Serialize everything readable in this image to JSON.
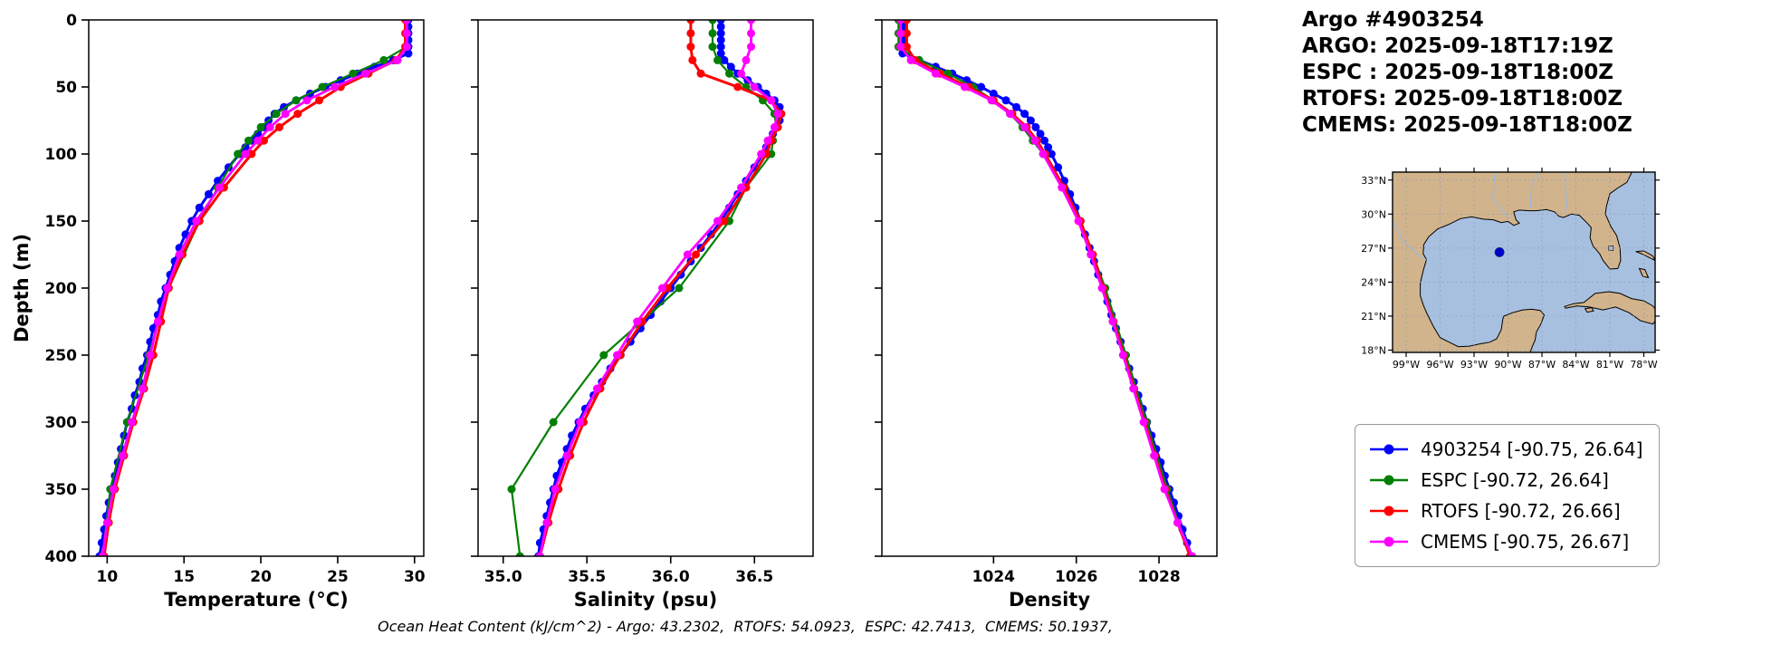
{
  "title_block": {
    "lines": [
      "Argo #4903254",
      "ARGO: 2025-09-18T17:19Z",
      "ESPC : 2025-09-18T18:00Z",
      "RTOFS: 2025-09-18T18:00Z",
      "CMEMS: 2025-09-18T18:00Z"
    ]
  },
  "footer": {
    "text": "Ocean Heat Content (kJ/cm^2) - Argo: 43.2302,  RTOFS: 54.0923,  ESPC: 42.7413,  CMEMS: 50.1937,"
  },
  "legend": {
    "items": [
      {
        "label": "4903254 [-90.75, 26.64]",
        "color": "#0000ff"
      },
      {
        "label": "ESPC [-90.72, 26.64]",
        "color": "#008000"
      },
      {
        "label": "RTOFS [-90.72, 26.66]",
        "color": "#ff0000"
      },
      {
        "label": "CMEMS [-90.75, 26.67]",
        "color": "#ff00ff"
      }
    ]
  },
  "map": {
    "lon_range": [
      -100.2,
      -77.0
    ],
    "lat_range": [
      17.8,
      33.7
    ],
    "lat_ticks": [
      {
        "value": 33,
        "label": "33°N"
      },
      {
        "value": 30,
        "label": "30°N"
      },
      {
        "value": 27,
        "label": "27°N"
      },
      {
        "value": 24,
        "label": "24°N"
      },
      {
        "value": 21,
        "label": "21°N"
      },
      {
        "value": 18,
        "label": "18°N"
      }
    ],
    "lon_ticks": [
      {
        "value": -99,
        "label": "99°W"
      },
      {
        "value": -96,
        "label": "96°W"
      },
      {
        "value": -93,
        "label": "93°W"
      },
      {
        "value": -90,
        "label": "90°W"
      },
      {
        "value": -87,
        "label": "87°W"
      },
      {
        "value": -84,
        "label": "84°W"
      },
      {
        "value": -81,
        "label": "81°W"
      },
      {
        "value": -78,
        "label": "78°W"
      }
    ],
    "marker": {
      "lon": -90.75,
      "lat": 26.64
    },
    "colors": {
      "water": "#a8c0e0",
      "land": "#d2b48c",
      "marker": "#0000cd",
      "river": "#9ab8dd",
      "grid": "#8f9db0"
    },
    "land": [
      [
        [
          -100.5,
          33.8
        ],
        [
          -79.0,
          33.8
        ],
        [
          -79.5,
          32.8
        ],
        [
          -80.3,
          32.3
        ],
        [
          -81.0,
          31.8
        ],
        [
          -81.3,
          30.7
        ],
        [
          -81.4,
          30.0
        ],
        [
          -80.9,
          28.9
        ],
        [
          -80.4,
          28.1
        ],
        [
          -80.1,
          27.0
        ],
        [
          -80.05,
          25.9
        ],
        [
          -80.3,
          25.2
        ],
        [
          -81.0,
          25.15
        ],
        [
          -81.6,
          25.9
        ],
        [
          -81.9,
          26.5
        ],
        [
          -82.5,
          27.2
        ],
        [
          -82.75,
          27.9
        ],
        [
          -82.65,
          28.8
        ],
        [
          -83.0,
          29.2
        ],
        [
          -83.7,
          29.9
        ],
        [
          -84.4,
          30.0
        ],
        [
          -85.1,
          29.7
        ],
        [
          -85.5,
          29.8
        ],
        [
          -85.9,
          30.2
        ],
        [
          -86.6,
          30.4
        ],
        [
          -87.5,
          30.3
        ],
        [
          -88.2,
          30.3
        ],
        [
          -89.0,
          30.35
        ],
        [
          -89.5,
          30.2
        ],
        [
          -89.3,
          29.5
        ],
        [
          -89.0,
          29.2
        ],
        [
          -89.5,
          29.0
        ],
        [
          -90.0,
          29.35
        ],
        [
          -90.6,
          29.25
        ],
        [
          -91.3,
          29.5
        ],
        [
          -92.2,
          29.55
        ],
        [
          -93.2,
          29.75
        ],
        [
          -94.2,
          29.6
        ],
        [
          -95.2,
          29.1
        ],
        [
          -96.2,
          28.7
        ],
        [
          -97.0,
          28.0
        ],
        [
          -97.45,
          27.3
        ],
        [
          -97.5,
          26.5
        ],
        [
          -97.2,
          26.0
        ],
        [
          -97.5,
          25.0
        ],
        [
          -97.75,
          23.9
        ],
        [
          -97.75,
          22.8
        ],
        [
          -97.5,
          22.0
        ],
        [
          -97.15,
          21.2
        ],
        [
          -96.6,
          20.1
        ],
        [
          -96.0,
          19.1
        ],
        [
          -95.2,
          18.7
        ],
        [
          -94.4,
          18.3
        ],
        [
          -93.4,
          18.35
        ],
        [
          -92.5,
          18.55
        ],
        [
          -91.6,
          18.7
        ],
        [
          -91.0,
          19.0
        ],
        [
          -90.6,
          19.8
        ],
        [
          -90.45,
          20.8
        ],
        [
          -90.35,
          21.0
        ],
        [
          -89.6,
          21.3
        ],
        [
          -88.7,
          21.55
        ],
        [
          -87.9,
          21.6
        ],
        [
          -87.15,
          21.5
        ],
        [
          -86.8,
          21.1
        ],
        [
          -87.1,
          20.3
        ],
        [
          -87.5,
          19.6
        ],
        [
          -87.6,
          18.9
        ],
        [
          -87.9,
          18.2
        ],
        [
          -88.1,
          17.6
        ],
        [
          -100.5,
          17.6
        ]
      ],
      [
        [
          -85.0,
          21.85
        ],
        [
          -84.2,
          22.1
        ],
        [
          -83.3,
          22.2
        ],
        [
          -82.3,
          23.0
        ],
        [
          -81.1,
          23.15
        ],
        [
          -80.1,
          23.0
        ],
        [
          -79.1,
          22.55
        ],
        [
          -78.0,
          22.35
        ],
        [
          -77.2,
          21.9
        ],
        [
          -76.6,
          21.1
        ],
        [
          -77.2,
          20.3
        ],
        [
          -78.3,
          20.6
        ],
        [
          -79.3,
          21.3
        ],
        [
          -80.5,
          21.8
        ],
        [
          -81.6,
          21.55
        ],
        [
          -82.8,
          21.8
        ],
        [
          -83.9,
          21.9
        ],
        [
          -84.9,
          21.7
        ]
      ],
      [
        [
          -83.2,
          21.65
        ],
        [
          -82.6,
          21.75
        ],
        [
          -82.45,
          21.45
        ],
        [
          -83.0,
          21.35
        ]
      ],
      [
        [
          -78.7,
          26.7
        ],
        [
          -78.0,
          26.75
        ],
        [
          -77.2,
          26.3
        ],
        [
          -77.0,
          25.9
        ],
        [
          -77.4,
          26.1
        ],
        [
          -78.2,
          26.5
        ]
      ],
      [
        [
          -78.4,
          25.2
        ],
        [
          -77.9,
          25.1
        ],
        [
          -77.6,
          24.4
        ],
        [
          -78.1,
          24.5
        ]
      ]
    ],
    "lakes": [
      [
        [
          -81.1,
          27.2
        ],
        [
          -80.7,
          27.2
        ],
        [
          -80.7,
          26.8
        ],
        [
          -81.1,
          26.8
        ]
      ]
    ],
    "rivers": [
      [
        [
          -91.3,
          33.8
        ],
        [
          -91.1,
          32.5
        ],
        [
          -91.5,
          31.5
        ],
        [
          -90.9,
          30.8
        ],
        [
          -89.9,
          29.6
        ]
      ],
      [
        [
          -87.3,
          33.8
        ],
        [
          -87.9,
          32.5
        ],
        [
          -88.0,
          31.2
        ],
        [
          -88.0,
          30.6
        ]
      ],
      [
        [
          -85.0,
          33.8
        ],
        [
          -84.9,
          32.2
        ],
        [
          -84.8,
          30.8
        ],
        [
          -85.0,
          30.0
        ]
      ],
      [
        [
          -100.1,
          29.3
        ],
        [
          -99.3,
          27.6
        ],
        [
          -97.8,
          26.3
        ],
        [
          -97.2,
          25.95
        ]
      ]
    ]
  },
  "chart_data": {
    "type": "line",
    "orientation": "vertical-profile",
    "ylabel": "Depth (m)",
    "ylim": [
      0,
      400
    ],
    "yticks": [
      0,
      50,
      100,
      150,
      200,
      250,
      300,
      350,
      400
    ],
    "panels": [
      {
        "key": "temperature",
        "xlabel": "Temperature (°C)",
        "xlim": [
          8.8,
          30.6
        ],
        "xticks": [
          10,
          15,
          20,
          25,
          30
        ],
        "xtick_labels": [
          "10",
          "15",
          "20",
          "25",
          "30"
        ]
      },
      {
        "key": "salinity",
        "xlabel": "Salinity (psu)",
        "xlim": [
          34.85,
          36.85
        ],
        "xticks": [
          35.0,
          35.5,
          36.0,
          36.5
        ],
        "xtick_labels": [
          "35.0",
          "35.5",
          "36.0",
          "36.5"
        ]
      },
      {
        "key": "density",
        "xlabel": "Density",
        "xlim": [
          1021.3,
          1029.4
        ],
        "xticks": [
          1024,
          1026,
          1028
        ],
        "xtick_labels": [
          "1024",
          "1026",
          "1028"
        ]
      }
    ],
    "series": [
      {
        "name": "4903254",
        "color": "#0000ff",
        "line_width": 3,
        "marker_size": 4.5,
        "depths": [
          0,
          5,
          10,
          15,
          20,
          25,
          30,
          35,
          40,
          45,
          50,
          55,
          60,
          65,
          70,
          75,
          80,
          85,
          90,
          95,
          100,
          110,
          120,
          130,
          140,
          150,
          160,
          170,
          180,
          190,
          200,
          210,
          220,
          230,
          240,
          250,
          260,
          270,
          280,
          290,
          300,
          310,
          320,
          330,
          340,
          350,
          360,
          370,
          380,
          390,
          400
        ],
        "temperature": [
          29.6,
          29.6,
          29.6,
          29.6,
          29.6,
          29.6,
          28.6,
          27.4,
          26.3,
          25.2,
          24.2,
          23.2,
          22.3,
          21.5,
          20.9,
          20.5,
          20.2,
          19.8,
          19.4,
          19.0,
          18.6,
          17.9,
          17.2,
          16.6,
          16.0,
          15.5,
          15.1,
          14.7,
          14.4,
          14.1,
          13.8,
          13.5,
          13.3,
          13.0,
          12.8,
          12.6,
          12.3,
          12.1,
          11.8,
          11.6,
          11.3,
          11.1,
          10.9,
          10.7,
          10.5,
          10.3,
          10.1,
          9.95,
          9.8,
          9.65,
          9.5
        ],
        "salinity": [
          36.3,
          36.3,
          36.3,
          36.3,
          36.3,
          36.3,
          36.32,
          36.36,
          36.4,
          36.46,
          36.52,
          36.57,
          36.62,
          36.65,
          36.66,
          36.65,
          36.63,
          36.61,
          36.59,
          36.57,
          36.55,
          36.5,
          36.45,
          36.4,
          36.35,
          36.3,
          36.24,
          36.18,
          36.12,
          36.06,
          36.0,
          35.94,
          35.88,
          35.82,
          35.76,
          35.7,
          35.64,
          35.59,
          35.54,
          35.49,
          35.45,
          35.41,
          35.38,
          35.35,
          35.32,
          35.3,
          35.28,
          35.26,
          35.24,
          35.22,
          35.21
        ],
        "density": [
          1021.8,
          1021.8,
          1021.8,
          1021.8,
          1021.8,
          1021.8,
          1022.2,
          1022.6,
          1023.0,
          1023.35,
          1023.7,
          1024.0,
          1024.3,
          1024.55,
          1024.75,
          1024.9,
          1025.02,
          1025.13,
          1025.23,
          1025.32,
          1025.4,
          1025.56,
          1025.71,
          1025.85,
          1025.98,
          1026.1,
          1026.21,
          1026.32,
          1026.43,
          1026.53,
          1026.64,
          1026.75,
          1026.85,
          1026.96,
          1027.07,
          1027.18,
          1027.28,
          1027.39,
          1027.5,
          1027.61,
          1027.71,
          1027.82,
          1027.93,
          1028.04,
          1028.14,
          1028.25,
          1028.36,
          1028.47,
          1028.57,
          1028.68,
          1028.79
        ]
      },
      {
        "name": "ESPC",
        "color": "#008000",
        "line_width": 2.2,
        "marker_size": 4.5,
        "depths": [
          0,
          10,
          20,
          30,
          40,
          50,
          60,
          70,
          80,
          90,
          100,
          125,
          150,
          200,
          250,
          300,
          350,
          400
        ],
        "temperature": [
          29.5,
          29.5,
          29.5,
          28.0,
          26.0,
          24.0,
          22.3,
          21.0,
          20.0,
          19.2,
          18.5,
          17.2,
          16.0,
          14.0,
          12.7,
          11.3,
          10.2,
          9.7
        ],
        "salinity": [
          36.25,
          36.25,
          36.25,
          36.28,
          36.35,
          36.45,
          36.55,
          36.62,
          36.63,
          36.61,
          36.6,
          36.45,
          36.35,
          36.05,
          35.6,
          35.3,
          35.05,
          35.1
        ],
        "density": [
          1021.7,
          1021.7,
          1021.7,
          1022.2,
          1022.9,
          1023.5,
          1024.0,
          1024.4,
          1024.7,
          1024.95,
          1025.2,
          1025.7,
          1026.1,
          1026.7,
          1027.2,
          1027.7,
          1028.2,
          1028.75
        ]
      },
      {
        "name": "RTOFS",
        "color": "#ff0000",
        "line_width": 3,
        "marker_size": 4.5,
        "depths": [
          0,
          10,
          20,
          30,
          40,
          50,
          60,
          70,
          80,
          90,
          100,
          125,
          150,
          175,
          200,
          225,
          250,
          275,
          300,
          325,
          350,
          375,
          400
        ],
        "temperature": [
          29.4,
          29.4,
          29.4,
          28.8,
          27.0,
          25.2,
          23.8,
          22.4,
          21.2,
          20.2,
          19.4,
          17.6,
          16.0,
          14.9,
          14.0,
          13.5,
          13.0,
          12.4,
          11.7,
          11.1,
          10.5,
          10.1,
          9.8
        ],
        "salinity": [
          36.12,
          36.12,
          36.12,
          36.13,
          36.18,
          36.4,
          36.6,
          36.66,
          36.64,
          36.6,
          36.57,
          36.45,
          36.32,
          36.15,
          35.98,
          35.83,
          35.7,
          35.58,
          35.48,
          35.4,
          35.33,
          35.27,
          35.22
        ],
        "density": [
          1021.9,
          1021.9,
          1021.9,
          1022.1,
          1022.7,
          1023.4,
          1024.0,
          1024.45,
          1024.8,
          1025.05,
          1025.25,
          1025.7,
          1026.1,
          1026.4,
          1026.65,
          1026.9,
          1027.15,
          1027.4,
          1027.65,
          1027.9,
          1028.15,
          1028.45,
          1028.75
        ]
      },
      {
        "name": "CMEMS",
        "color": "#ff00ff",
        "line_width": 2.8,
        "marker_size": 4.5,
        "depths": [
          0,
          10,
          20,
          30,
          40,
          50,
          60,
          70,
          80,
          90,
          100,
          125,
          150,
          175,
          200,
          225,
          250,
          275,
          300,
          325,
          350,
          375,
          400
        ],
        "temperature": [
          29.5,
          29.5,
          29.5,
          28.9,
          26.8,
          24.8,
          23.0,
          21.6,
          20.6,
          19.8,
          19.0,
          17.3,
          15.8,
          14.7,
          13.9,
          13.3,
          12.8,
          12.3,
          11.6,
          11.0,
          10.4,
          10.0,
          9.7
        ],
        "salinity": [
          36.48,
          36.48,
          36.48,
          36.45,
          36.42,
          36.5,
          36.6,
          36.64,
          36.62,
          36.58,
          36.54,
          36.42,
          36.28,
          36.1,
          35.95,
          35.8,
          35.68,
          35.56,
          35.46,
          35.38,
          35.31,
          35.26,
          35.22
        ],
        "density": [
          1021.75,
          1021.75,
          1021.75,
          1022.0,
          1022.6,
          1023.3,
          1023.95,
          1024.4,
          1024.75,
          1025.0,
          1025.2,
          1025.65,
          1026.05,
          1026.35,
          1026.62,
          1026.88,
          1027.13,
          1027.38,
          1027.63,
          1027.88,
          1028.13,
          1028.45,
          1028.8
        ]
      }
    ]
  }
}
